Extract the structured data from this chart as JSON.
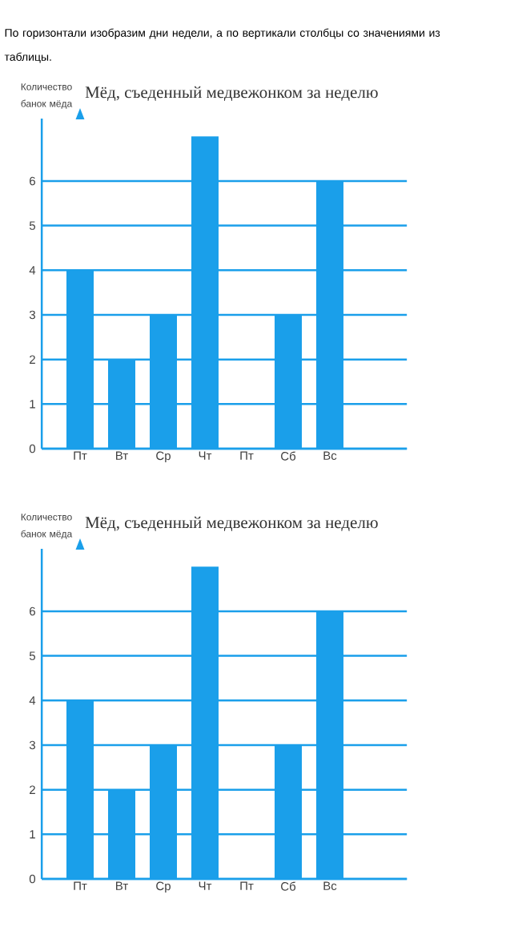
{
  "chart_data": [
    {
      "type": "bar",
      "title": "Мёд, съеденный медвежонком за неделю",
      "ylabel": "Количество банок мёда",
      "annotations": [
        "По горизонтали изобразим дни недели, а по вертикали столбцы со значениями из таблицы."
      ],
      "categories": [
        "Пт",
        "Вт",
        "Ср",
        "Чт",
        "Пт",
        "Сб",
        "Вс"
      ],
      "values": [
        4,
        2,
        3,
        7,
        0,
        3,
        6
      ],
      "color": "#1a9fea",
      "ylim": [
        0,
        7.4
      ],
      "yticks": [
        0,
        1,
        2,
        3,
        4,
        5,
        6
      ],
      "grid": "y"
    },
    {
      "type": "bar",
      "title": "Мёд, съеденный медвежонком за неделю",
      "ylabel": "Количество банок мёда",
      "categories": [
        "Пт",
        "Вт",
        "Ср",
        "Чт",
        "Пт",
        "Сб",
        "Вс"
      ],
      "values": [
        4,
        2,
        3,
        7,
        0,
        3,
        6
      ],
      "color": "#1a9fea",
      "ylim": [
        0,
        7.4
      ],
      "yticks": [
        0,
        1,
        2,
        3,
        4,
        5,
        6
      ],
      "grid": "y"
    }
  ]
}
